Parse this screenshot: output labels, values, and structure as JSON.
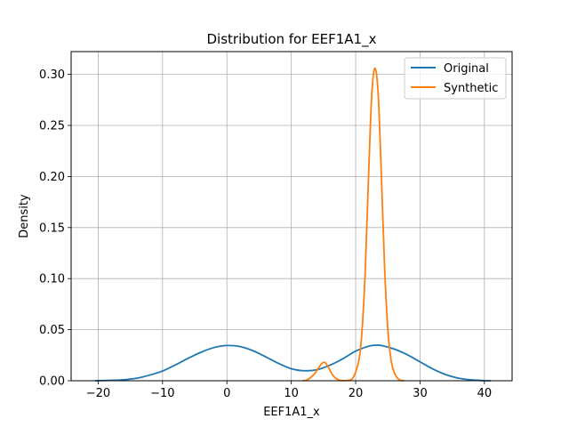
{
  "chart_data": {
    "type": "line",
    "title": "Distribution for EEF1A1_x",
    "xlabel": "EEF1A1_x",
    "ylabel": "Density",
    "xlim": [
      -24.2,
      44.3
    ],
    "ylim": [
      0,
      0.3223
    ],
    "xticks": [
      -20,
      -10,
      0,
      10,
      20,
      30,
      40
    ],
    "xtick_labels": [
      "−20",
      "−10",
      "0",
      "10",
      "20",
      "30",
      "40"
    ],
    "yticks": [
      0.0,
      0.05,
      0.1,
      0.15,
      0.2,
      0.25,
      0.3
    ],
    "ytick_labels": [
      "0.00",
      "0.05",
      "0.10",
      "0.15",
      "0.20",
      "0.25",
      "0.30"
    ],
    "grid": true,
    "legend_position": "top-right",
    "series": [
      {
        "name": "Original",
        "color": "#1f77b4",
        "x": [
          -20.5,
          -18,
          -16,
          -14,
          -12,
          -10,
          -8,
          -6,
          -4,
          -2,
          0,
          2,
          4,
          6,
          8,
          10,
          12,
          14,
          16,
          18,
          20,
          22,
          23,
          24,
          26,
          28,
          30,
          32,
          34,
          36,
          38,
          40,
          41
        ],
        "y": [
          0.0,
          0.0004,
          0.001,
          0.0025,
          0.0055,
          0.0095,
          0.0155,
          0.022,
          0.028,
          0.0325,
          0.0345,
          0.0335,
          0.0295,
          0.0235,
          0.017,
          0.0118,
          0.0098,
          0.0108,
          0.0152,
          0.0215,
          0.029,
          0.0338,
          0.0348,
          0.0345,
          0.031,
          0.0255,
          0.0185,
          0.0115,
          0.006,
          0.0025,
          0.0008,
          0.0001,
          0.0
        ]
      },
      {
        "name": "Synthetic",
        "color": "#ff7f0e",
        "x": [
          11.8,
          12.5,
          13.5,
          14.5,
          15.0,
          15.5,
          16.5,
          17.5,
          18.5,
          19.5,
          20.5,
          21.0,
          21.5,
          22.0,
          22.5,
          23.0,
          23.5,
          24.0,
          24.5,
          25.0,
          25.5,
          26.0,
          26.5,
          27.0,
          27.5
        ],
        "y": [
          0.0,
          0.001,
          0.006,
          0.015,
          0.018,
          0.016,
          0.005,
          0.0005,
          0.0002,
          0.002,
          0.02,
          0.05,
          0.11,
          0.2,
          0.28,
          0.306,
          0.28,
          0.2,
          0.11,
          0.05,
          0.02,
          0.008,
          0.0025,
          0.0005,
          0.0
        ]
      }
    ]
  }
}
